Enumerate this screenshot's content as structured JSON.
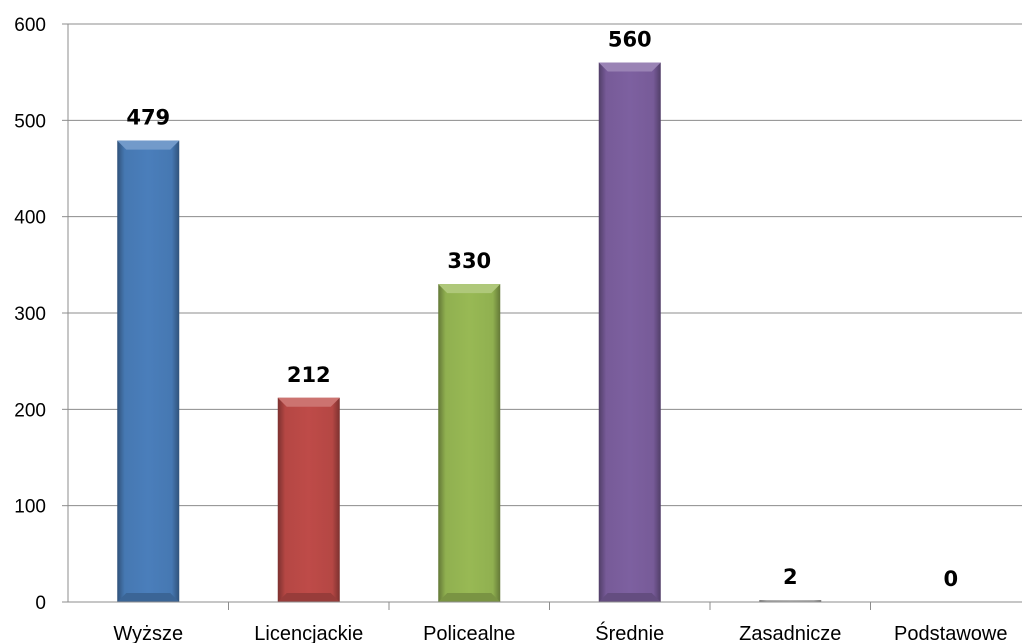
{
  "chart_data": {
    "type": "bar",
    "title": "",
    "xlabel": "",
    "ylabel": "",
    "categories": [
      "Wyższe",
      "Licencjackie",
      "Policealne",
      "Średnie",
      "Zasadnicze",
      "Podstawowe"
    ],
    "values": [
      479,
      212,
      330,
      560,
      2,
      0
    ],
    "data_labels": [
      "479",
      "212",
      "330",
      "560",
      "2",
      "0"
    ],
    "ylim": [
      0,
      600
    ],
    "yticks": [
      "0",
      "100",
      "200",
      "300",
      "400",
      "500",
      "600"
    ],
    "grid": true,
    "legend": "none",
    "colors": [
      "#4a7ebb",
      "#be4b48",
      "#98b954",
      "#7d60a0",
      "#b0b0b0",
      "#b0b0b0"
    ]
  }
}
